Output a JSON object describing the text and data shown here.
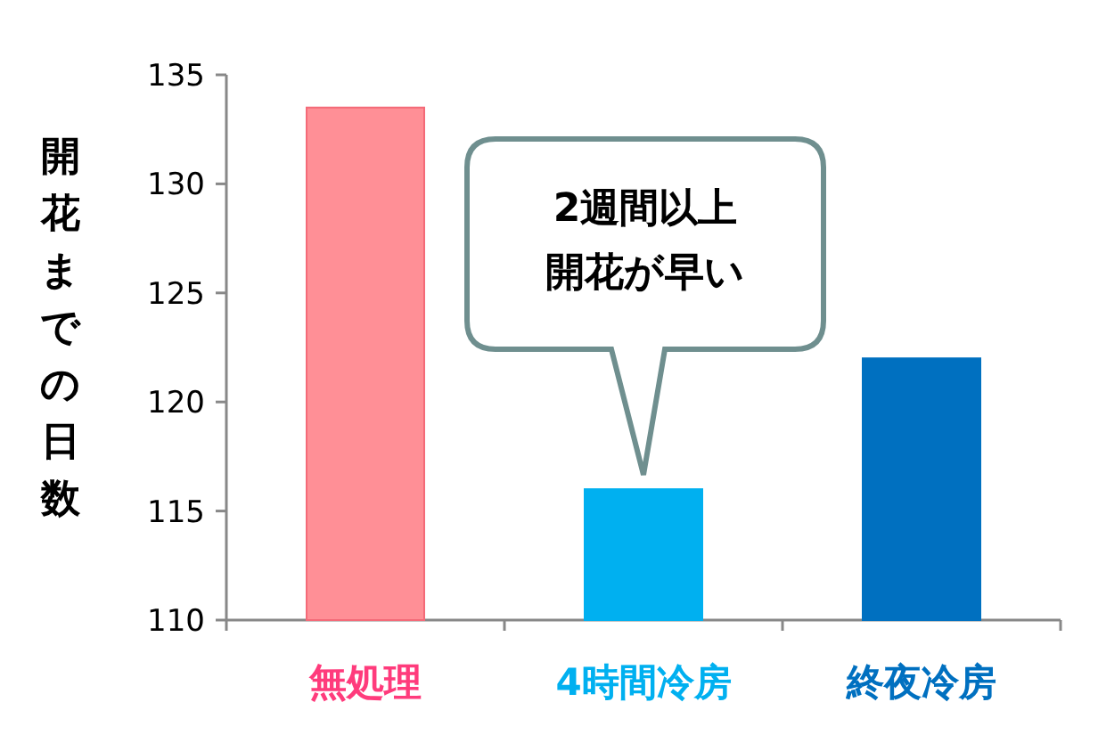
{
  "chart_data": {
    "type": "bar",
    "ylabel": "開花までの日数",
    "categories": [
      "無処理",
      "4時間冷房",
      "終夜冷房"
    ],
    "values": [
      133.5,
      116,
      122
    ],
    "colors": [
      "#ff8f96",
      "#00b0f0",
      "#0070c0"
    ],
    "ylim": [
      110,
      135
    ],
    "yticks": [
      110,
      115,
      120,
      125,
      130,
      135
    ],
    "grid": false,
    "annotations": [
      "2週間以上開花が早い"
    ]
  }
}
